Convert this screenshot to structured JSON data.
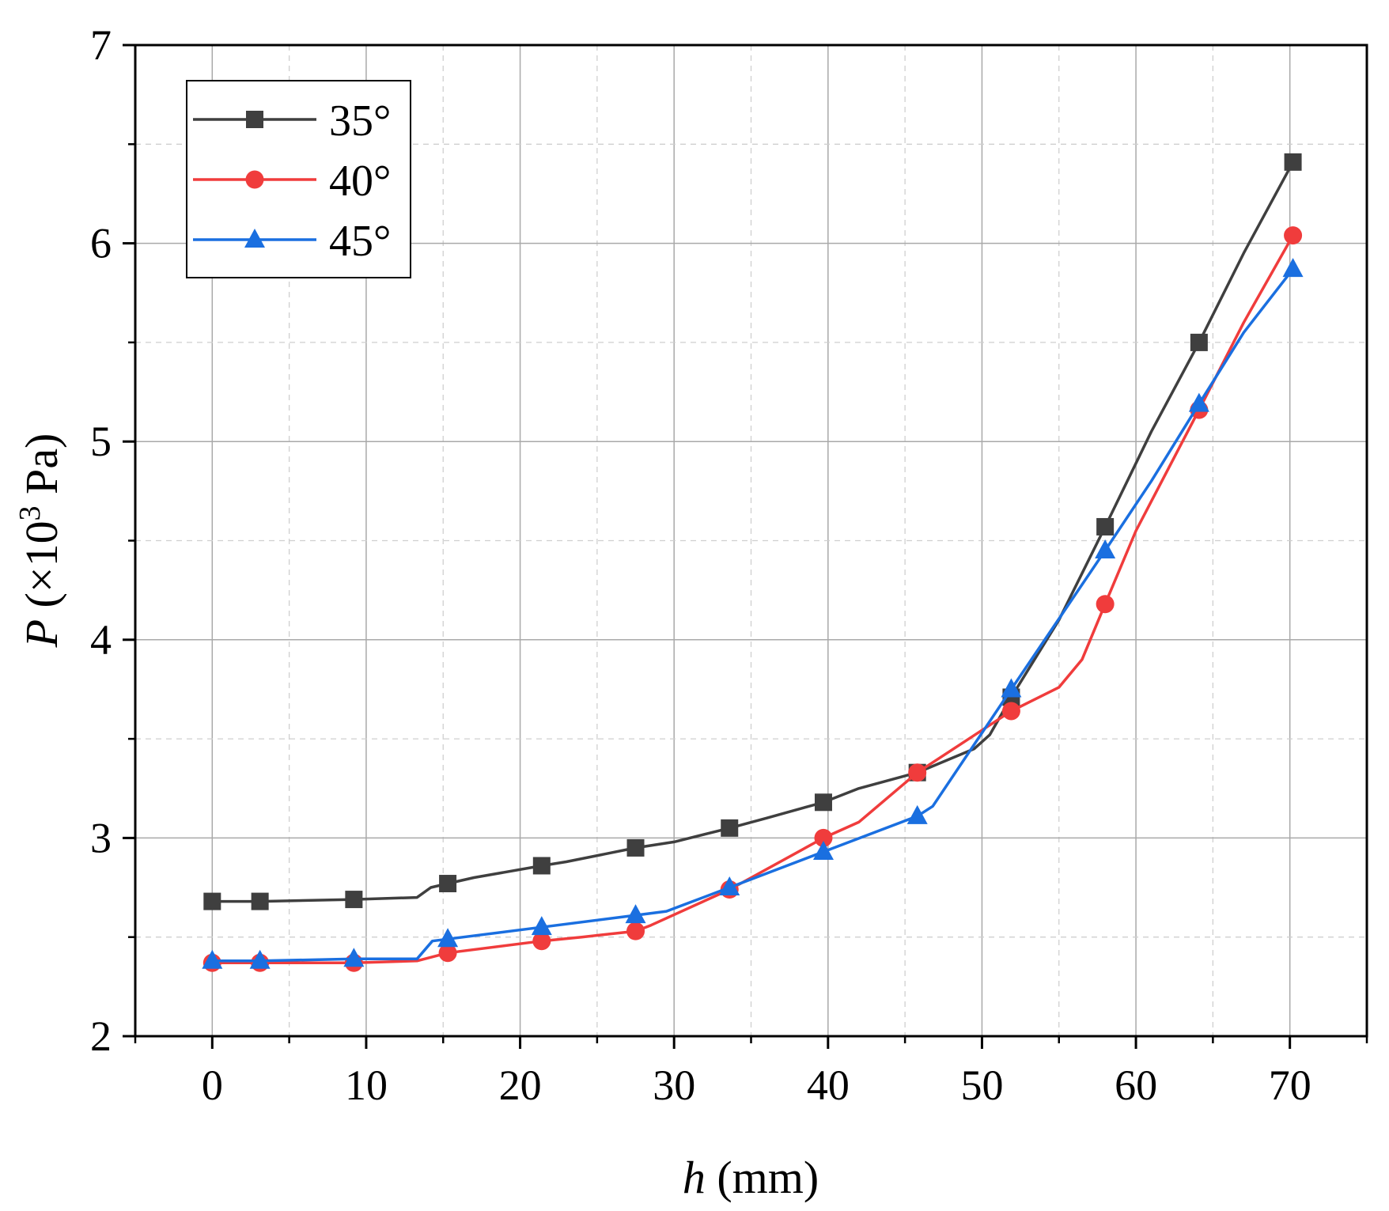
{
  "chart_data": {
    "type": "line",
    "title": "",
    "xlabel": {
      "var": "h",
      "unit": " (mm)"
    },
    "ylabel": {
      "var": "P",
      "pre": " (×10",
      "sup": "3",
      "post": " Pa)"
    },
    "xlim": [
      -5,
      75
    ],
    "ylim": [
      2,
      7
    ],
    "xticks": [
      0,
      10,
      20,
      30,
      40,
      50,
      60,
      70
    ],
    "yticks": [
      2,
      3,
      4,
      5,
      6,
      7
    ],
    "xtick_labels": [
      "0",
      "10",
      "20",
      "30",
      "40",
      "50",
      "60",
      "70"
    ],
    "ytick_labels": [
      "2",
      "3",
      "4",
      "5",
      "6",
      "7"
    ],
    "grid": true,
    "legend_position": "top-left",
    "series": [
      {
        "name": "35°",
        "color": "#3f3f3f",
        "marker": "square",
        "x": [
          0,
          3.1,
          9.2,
          15.3,
          21.4,
          27.5,
          33.6,
          39.7,
          45.8,
          51.9,
          58.0,
          64.1,
          70.2
        ],
        "y": [
          2.68,
          2.68,
          2.69,
          2.77,
          2.86,
          2.95,
          3.05,
          3.18,
          3.33,
          3.71,
          4.57,
          5.5,
          6.41
        ],
        "line_x": [
          0,
          3.1,
          9.2,
          13.3,
          14.2,
          15.3,
          17,
          21.4,
          23,
          27.5,
          30,
          33.6,
          36,
          39.7,
          42,
          45.8,
          49.5,
          50.5,
          51.9,
          55,
          58.0,
          61,
          64.1,
          67,
          70.2
        ],
        "line_y": [
          2.68,
          2.68,
          2.69,
          2.7,
          2.75,
          2.77,
          2.8,
          2.86,
          2.88,
          2.95,
          2.98,
          3.05,
          3.1,
          3.18,
          3.25,
          3.33,
          3.45,
          3.52,
          3.71,
          4.1,
          4.57,
          5.05,
          5.5,
          5.95,
          6.41
        ]
      },
      {
        "name": "40°",
        "color": "#f03c3c",
        "marker": "circle",
        "x": [
          0,
          3.1,
          9.2,
          15.3,
          21.4,
          27.5,
          33.6,
          39.7,
          45.8,
          51.9,
          58.0,
          64.1,
          70.2
        ],
        "y": [
          2.37,
          2.37,
          2.37,
          2.42,
          2.48,
          2.53,
          2.74,
          3.0,
          3.33,
          3.64,
          4.18,
          5.16,
          6.04
        ],
        "line_x": [
          0,
          3.1,
          9.2,
          13.3,
          15.3,
          21.4,
          24,
          27.5,
          28.5,
          33.6,
          39.7,
          42,
          45.8,
          51.9,
          55,
          56.5,
          58.0,
          60,
          64.1,
          67,
          70.2
        ],
        "line_y": [
          2.37,
          2.37,
          2.37,
          2.38,
          2.42,
          2.48,
          2.5,
          2.53,
          2.56,
          2.74,
          3.0,
          3.08,
          3.33,
          3.64,
          3.76,
          3.9,
          4.18,
          4.55,
          5.16,
          5.6,
          6.04
        ]
      },
      {
        "name": "45°",
        "color": "#1a6fe0",
        "marker": "triangle",
        "x": [
          0,
          3.1,
          9.2,
          15.3,
          21.4,
          27.5,
          33.6,
          39.7,
          45.8,
          51.9,
          58.0,
          64.1,
          70.2
        ],
        "y": [
          2.38,
          2.38,
          2.39,
          2.49,
          2.55,
          2.61,
          2.75,
          2.93,
          3.11,
          3.75,
          4.45,
          5.19,
          5.87
        ],
        "line_x": [
          0,
          3.1,
          9.2,
          13.3,
          14.3,
          15.3,
          21.4,
          27.5,
          29.5,
          33.6,
          39.7,
          45.8,
          46.8,
          51.9,
          58.0,
          61,
          64.1,
          67,
          70.2
        ],
        "line_y": [
          2.38,
          2.38,
          2.39,
          2.39,
          2.48,
          2.49,
          2.55,
          2.61,
          2.63,
          2.75,
          2.93,
          3.11,
          3.16,
          3.75,
          4.45,
          4.8,
          5.19,
          5.55,
          5.87
        ]
      }
    ]
  }
}
